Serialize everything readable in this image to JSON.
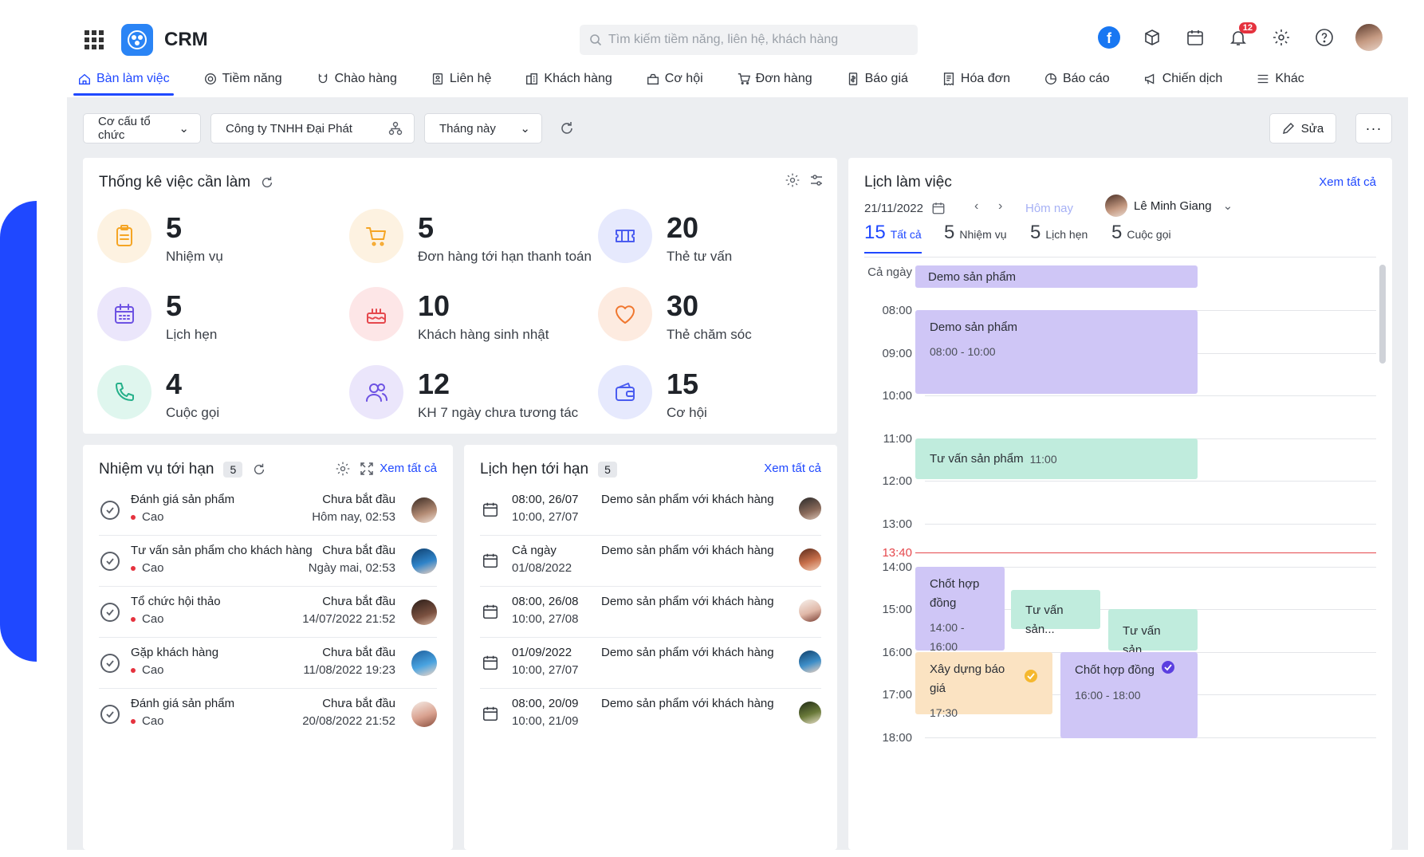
{
  "header": {
    "brand": "CRM",
    "search_placeholder": "Tìm kiếm tiềm năng, liên hệ, khách hàng",
    "notification_count": "12"
  },
  "nav": [
    {
      "label": "Bàn làm việc",
      "icon": "home-icon",
      "active": true
    },
    {
      "label": "Tiềm năng",
      "icon": "target-icon"
    },
    {
      "label": "Chào hàng",
      "icon": "magnet-icon"
    },
    {
      "label": "Liên hệ",
      "icon": "contact-icon"
    },
    {
      "label": "Khách hàng",
      "icon": "building-icon"
    },
    {
      "label": "Cơ hội",
      "icon": "opportunity-icon"
    },
    {
      "label": "Đơn hàng",
      "icon": "cart-icon"
    },
    {
      "label": "Báo giá",
      "icon": "quote-icon"
    },
    {
      "label": "Hóa đơn",
      "icon": "invoice-icon"
    },
    {
      "label": "Báo cáo",
      "icon": "report-icon"
    },
    {
      "label": "Chiến dịch",
      "icon": "megaphone-icon"
    },
    {
      "label": "Khác",
      "icon": "menu-icon"
    }
  ],
  "filters": {
    "org": "Cơ cấu tổ chức",
    "company": "Công ty TNHH Đại Phát",
    "period": "Tháng này",
    "edit": "Sửa",
    "more": "···"
  },
  "todo": {
    "title": "Thống kê việc cần làm",
    "stats": [
      {
        "value": "5",
        "label": "Nhiệm vụ",
        "color": "#f5a524",
        "bg": "#fdf2e1",
        "icon": "clipboard-icon"
      },
      {
        "value": "5",
        "label": "Đơn hàng tới hạn thanh toán",
        "color": "#f5a524",
        "bg": "#fdf2e1",
        "icon": "cart-icon"
      },
      {
        "value": "20",
        "label": "Thẻ tư vấn",
        "color": "#4a5cf0",
        "bg": "#e6e9fd",
        "icon": "ticket-icon"
      },
      {
        "value": "5",
        "label": "Lịch hẹn",
        "color": "#6d52e3",
        "bg": "#ebe6fb",
        "icon": "calendar-icon"
      },
      {
        "value": "10",
        "label": "Khách hàng sinh nhật",
        "color": "#e5484d",
        "bg": "#fde6e7",
        "icon": "cake-icon"
      },
      {
        "value": "30",
        "label": "Thẻ chăm sóc",
        "color": "#f0772f",
        "bg": "#fdebe0",
        "icon": "heart-icon"
      },
      {
        "value": "4",
        "label": "Cuộc gọi",
        "color": "#25b08a",
        "bg": "#dff6ee",
        "icon": "phone-icon"
      },
      {
        "value": "12",
        "label": "KH 7 ngày chưa tương tác",
        "color": "#6d52e3",
        "bg": "#ebe6fb",
        "icon": "users-icon"
      },
      {
        "value": "15",
        "label": "Cơ hội",
        "color": "#4a5cf0",
        "bg": "#e6e9fd",
        "icon": "wallet-icon"
      }
    ]
  },
  "tasks": {
    "title": "Nhiệm vụ tới hạn",
    "count": "5",
    "view_all": "Xem tất cả",
    "rows": [
      {
        "name": "Đánh giá sản phẩm",
        "priority": "Cao",
        "status": "Chưa bắt đầu",
        "due": "Hôm nay, 02:53"
      },
      {
        "name": "Tư vấn sản phẩm cho khách hàng",
        "priority": "Cao",
        "status": "Chưa bắt đầu",
        "due": "Ngày mai, 02:53"
      },
      {
        "name": "Tổ chức hội thảo",
        "priority": "Cao",
        "status": "Chưa bắt đầu",
        "due": "14/07/2022 21:52"
      },
      {
        "name": "Gặp khách hàng",
        "priority": "Cao",
        "status": "Chưa bắt đầu",
        "due": "11/08/2022 19:23"
      },
      {
        "name": "Đánh giá sản phẩm",
        "priority": "Cao",
        "status": "Chưa bắt đầu",
        "due": "20/08/2022 21:52"
      }
    ]
  },
  "appointments": {
    "title": "Lịch hẹn tới hạn",
    "count": "5",
    "view_all": "Xem tất cả",
    "rows": [
      {
        "start": "08:00, 26/07",
        "end": "10:00, 27/07",
        "desc": "Demo sản phẩm với khách hàng"
      },
      {
        "start": "Cả ngày",
        "end": "01/08/2022",
        "desc": "Demo sản phẩm với khách hàng"
      },
      {
        "start": "08:00, 26/08",
        "end": "10:00, 27/08",
        "desc": "Demo sản phẩm với khách hàng"
      },
      {
        "start": "01/09/2022",
        "end": "10:00, 27/07",
        "desc": "Demo sản phẩm với khách hàng"
      },
      {
        "start": "08:00, 20/09",
        "end": "10:00, 21/09",
        "desc": "Demo sản phẩm với khách hàng"
      }
    ]
  },
  "schedule": {
    "title": "Lịch làm việc",
    "view_all": "Xem tất cả",
    "date": "21/11/2022",
    "today": "Hôm nay",
    "user": "Lê Minh Giang",
    "tabs": [
      {
        "num": "15",
        "label": "Tất cả",
        "active": true
      },
      {
        "num": "5",
        "label": "Nhiệm vụ"
      },
      {
        "num": "5",
        "label": "Lịch hẹn"
      },
      {
        "num": "5",
        "label": "Cuộc gọi"
      }
    ],
    "allday_label": "Cả ngày",
    "allday_event": "Demo sản phẩm",
    "hours": [
      "08:00",
      "09:00",
      "10:00",
      "11:00",
      "12:00",
      "13:00",
      "14:00",
      "15:00",
      "16:00",
      "17:00",
      "18:00"
    ],
    "now": "13:40",
    "events": [
      {
        "title": "Demo sản phẩm",
        "time": "08:00 - 10:00"
      },
      {
        "title": "Tư vấn sản phẩm",
        "time": "11:00"
      },
      {
        "title": "Chốt hợp đồng",
        "time": "14:00 - 16:00"
      },
      {
        "title": "Tư vấn sản..."
      },
      {
        "title": "Tư vấn sản..."
      },
      {
        "title": "Xây dựng báo giá",
        "time": "17:30"
      },
      {
        "title": "Chốt hợp đồng",
        "time": "16:00 - 18:00"
      }
    ]
  }
}
